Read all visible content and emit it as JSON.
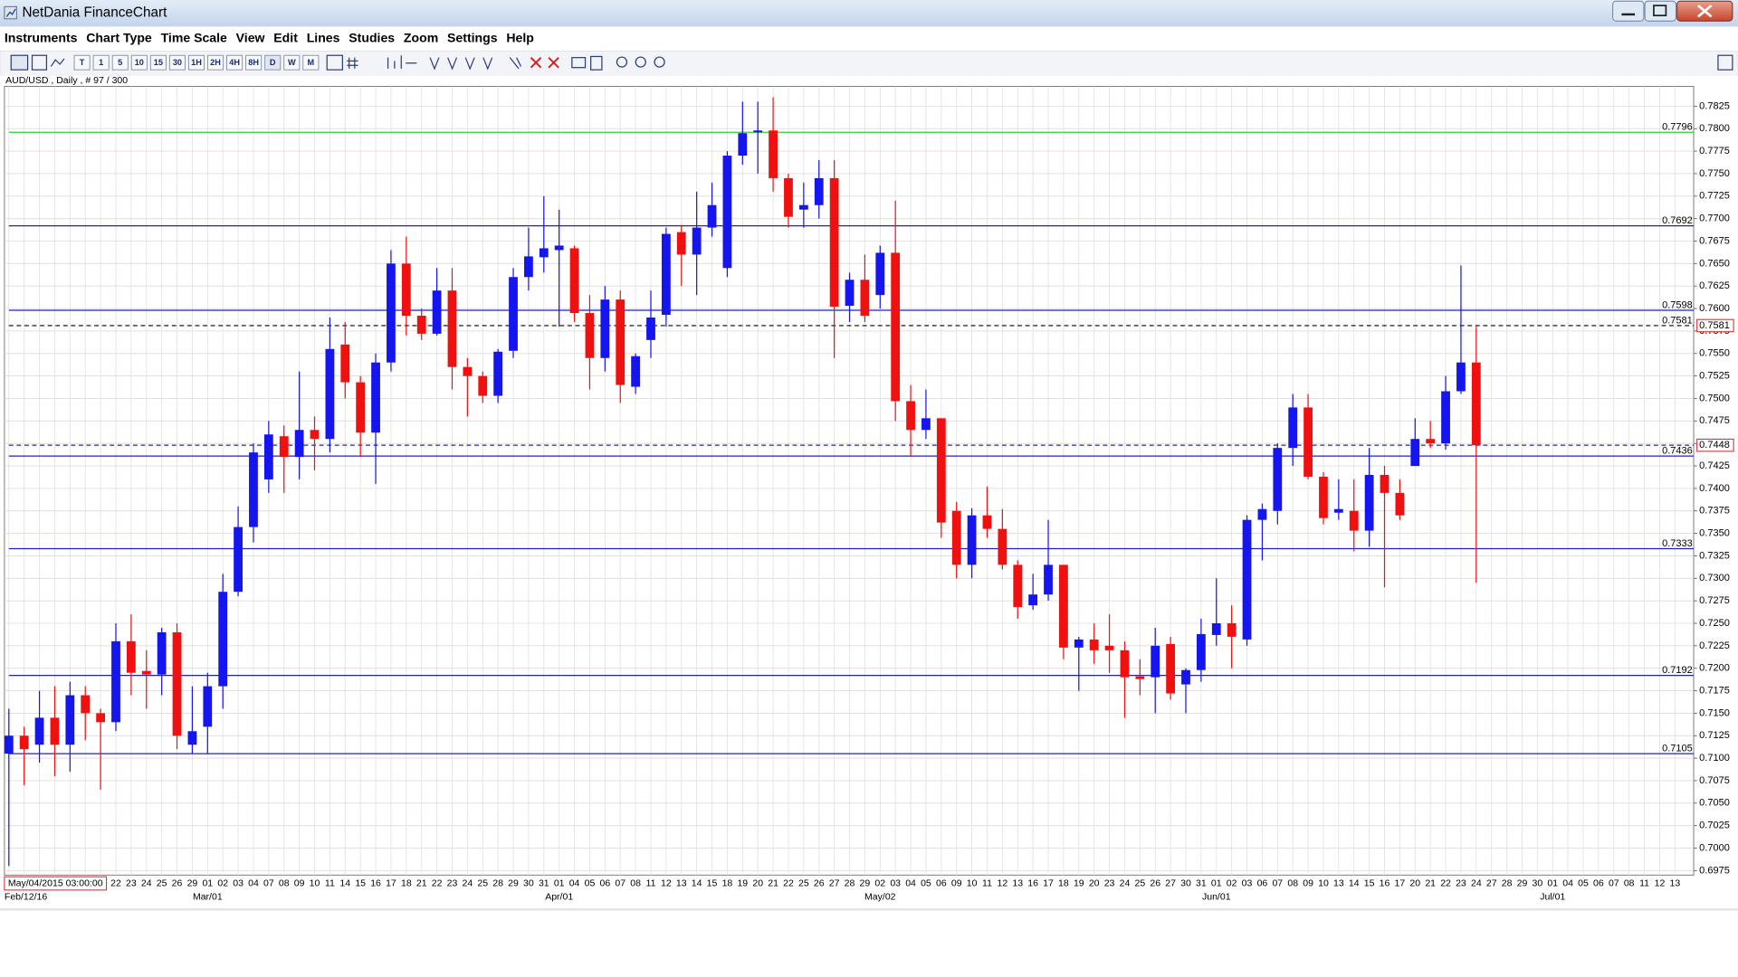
{
  "window": {
    "title": "NetDania FinanceChart",
    "menu": [
      "Instruments",
      "Chart Type",
      "Time Scale",
      "View",
      "Edit",
      "Lines",
      "Studies",
      "Zoom",
      "Settings",
      "Help"
    ],
    "timeframes": [
      "T",
      "1",
      "5",
      "10",
      "15",
      "30",
      "1H",
      "2H",
      "4H",
      "8H",
      "D",
      "W",
      "M"
    ],
    "cursor_time": "May/04/2015 03:00:00"
  },
  "chart_data": {
    "type": "candlestick",
    "title": "AUD/USD , Daily , # 97 / 300",
    "up_color": "#1515f0",
    "down_color": "#f01010",
    "grid": true,
    "axis_side": "right",
    "ylim": [
      0.697,
      0.7847
    ],
    "yticks": [
      0.6975,
      {
        "value": 0.7,
        "label": "0.7000"
      },
      0.7025,
      {
        "value": 0.705,
        "label": "0.7050"
      },
      0.7075,
      {
        "value": 0.71,
        "label": "0.7100"
      },
      0.7125,
      {
        "value": 0.715,
        "label": "0.7150"
      },
      0.7175,
      {
        "value": 0.72,
        "label": "0.7200"
      },
      0.7225,
      {
        "value": 0.725,
        "label": "0.7250"
      },
      0.7275,
      {
        "value": 0.73,
        "label": "0.7300"
      },
      0.7325,
      {
        "value": 0.735,
        "label": "0.7350"
      },
      0.7375,
      {
        "value": 0.74,
        "label": "0.7400"
      },
      0.7425,
      {
        "value": 0.745,
        "label": "0.7450"
      },
      0.7475,
      {
        "value": 0.75,
        "label": "0.7500"
      },
      0.7525,
      {
        "value": 0.755,
        "label": "0.7550"
      },
      0.7575,
      {
        "value": 0.76,
        "label": "0.7600"
      },
      0.7625,
      {
        "value": 0.765,
        "label": "0.7650"
      },
      0.7675,
      {
        "value": 0.77,
        "label": "0.7700"
      },
      0.7725,
      {
        "value": 0.775,
        "label": "0.7750"
      },
      0.7775,
      {
        "value": 0.78,
        "label": "0.7800"
      },
      0.7825
    ],
    "categories": [
      null,
      null,
      null,
      null,
      null,
      null,
      null,
      "22",
      "23",
      "24",
      "25",
      "26",
      "29",
      "01",
      "02",
      "03",
      "04",
      "07",
      "08",
      "09",
      "10",
      "11",
      "14",
      "15",
      "16",
      "17",
      "18",
      "21",
      "22",
      "23",
      "24",
      "25",
      "28",
      "29",
      "30",
      "31",
      "01",
      "04",
      "05",
      "06",
      "07",
      "08",
      "11",
      "12",
      "13",
      "14",
      "15",
      "18",
      "19",
      "20",
      "21",
      "22",
      "25",
      "26",
      "27",
      "28",
      "29",
      "02",
      "03",
      "04",
      "05",
      "06",
      "09",
      "10",
      "11",
      "12",
      "13",
      "16",
      "17",
      "18",
      "19",
      "20",
      "23",
      "24",
      "25",
      "26",
      "27",
      "30",
      "31",
      "01",
      "02",
      "03",
      "06",
      "07",
      "08",
      "09",
      "10",
      "13",
      "14",
      "15",
      "16",
      "17",
      "20",
      "21",
      "22",
      "23",
      "24",
      "27",
      "28",
      "29",
      "30",
      "01",
      "04",
      "05",
      "06",
      "07",
      "08",
      "11",
      "12",
      "13"
    ],
    "months": [
      {
        "label": "Feb/12/16",
        "index": 0
      },
      {
        "label": "Mar/01",
        "index": 13
      },
      {
        "label": "Apr/01",
        "index": 36
      },
      {
        "label": "May/02",
        "index": 57
      },
      {
        "label": "Jun/01",
        "index": 79
      },
      {
        "label": "Jul/01",
        "index": 101
      }
    ],
    "open": [
      0.7105,
      0.7125,
      0.7115,
      0.7145,
      0.7115,
      0.717,
      0.715,
      0.714,
      0.723,
      0.7197,
      0.7193,
      0.724,
      0.7115,
      0.7135,
      0.718,
      0.7285,
      0.7357,
      0.741,
      0.7458,
      0.7435,
      0.7465,
      0.7455,
      0.756,
      0.7518,
      0.7462,
      0.754,
      0.765,
      0.7592,
      0.7572,
      0.762,
      0.7535,
      0.7525,
      0.7503,
      0.7553,
      0.7635,
      0.7657,
      0.7665,
      0.7667,
      0.7595,
      0.7545,
      0.761,
      0.7513,
      0.7565,
      0.7593,
      0.7685,
      0.766,
      0.769,
      0.7645,
      0.777,
      0.7796,
      0.7798,
      0.7745,
      0.771,
      0.7715,
      0.7745,
      0.7603,
      0.7632,
      0.7615,
      0.7662,
      0.7497,
      0.7465,
      0.7478,
      0.7375,
      0.7315,
      0.737,
      0.7355,
      0.7315,
      0.727,
      0.7282,
      0.7315,
      0.7223,
      0.7232,
      0.7225,
      0.722,
      0.7191,
      0.719,
      0.7227,
      0.7182,
      0.7198,
      0.7237,
      0.725,
      0.7232,
      0.7365,
      0.7375,
      0.7445,
      0.749,
      0.7413,
      0.7373,
      0.7375,
      0.7353,
      0.7415,
      0.7395,
      0.7425,
      0.7455,
      0.745,
      0.7508,
      0.754,
      null,
      null,
      null,
      null,
      null,
      null,
      null,
      null,
      null,
      null,
      null,
      null,
      null
    ],
    "high": [
      0.7155,
      0.7135,
      0.7175,
      0.718,
      0.7185,
      0.718,
      0.7155,
      0.725,
      0.726,
      0.722,
      0.7245,
      0.725,
      0.718,
      0.7195,
      0.7305,
      0.738,
      0.745,
      0.7475,
      0.747,
      0.753,
      0.748,
      0.759,
      0.7585,
      0.7525,
      0.755,
      0.7665,
      0.768,
      0.76,
      0.7645,
      0.7645,
      0.7545,
      0.753,
      0.7555,
      0.7645,
      0.769,
      0.7725,
      0.771,
      0.767,
      0.7615,
      0.7625,
      0.762,
      0.755,
      0.762,
      0.769,
      0.7693,
      0.773,
      0.774,
      0.7775,
      0.783,
      0.783,
      0.7835,
      0.775,
      0.774,
      0.7765,
      0.7765,
      0.764,
      0.766,
      0.767,
      0.772,
      0.7515,
      0.751,
      0.7478,
      0.7385,
      0.7378,
      0.7402,
      0.7377,
      0.732,
      0.7305,
      0.7365,
      0.7315,
      0.7235,
      0.725,
      0.726,
      0.723,
      0.721,
      0.7245,
      0.7235,
      0.72,
      0.7255,
      0.73,
      0.727,
      0.737,
      0.7383,
      0.745,
      0.7505,
      0.7505,
      0.7418,
      0.741,
      0.741,
      0.7445,
      0.7425,
      0.741,
      0.7478,
      0.7475,
      0.7525,
      0.7648,
      0.758,
      null,
      null,
      null,
      null,
      null,
      null,
      null,
      null,
      null,
      null,
      null,
      null,
      null
    ],
    "low": [
      0.698,
      0.707,
      0.7095,
      0.708,
      0.7085,
      0.712,
      0.7065,
      0.713,
      0.717,
      0.7155,
      0.717,
      0.711,
      0.7105,
      0.7105,
      0.7155,
      0.728,
      0.734,
      0.7395,
      0.7395,
      0.741,
      0.742,
      0.744,
      0.75,
      0.7435,
      0.7405,
      0.753,
      0.757,
      0.7565,
      0.757,
      0.751,
      0.748,
      0.7495,
      0.7495,
      0.7545,
      0.762,
      0.764,
      0.758,
      0.7585,
      0.751,
      0.753,
      0.7495,
      0.7505,
      0.7545,
      0.758,
      0.7625,
      0.7615,
      0.768,
      0.7635,
      0.776,
      0.775,
      0.773,
      0.769,
      0.769,
      0.77,
      0.7545,
      0.7585,
      0.7585,
      0.76,
      0.7475,
      0.7435,
      0.7455,
      0.7345,
      0.73,
      0.73,
      0.7345,
      0.731,
      0.7255,
      0.7265,
      0.7275,
      0.721,
      0.7175,
      0.7205,
      0.7195,
      0.7145,
      0.717,
      0.715,
      0.7165,
      0.715,
      0.7185,
      0.7225,
      0.72,
      0.7225,
      0.732,
      0.736,
      0.7425,
      0.741,
      0.736,
      0.7365,
      0.733,
      0.7335,
      0.729,
      0.7365,
      0.7425,
      0.7445,
      0.7443,
      0.7505,
      0.7295,
      null,
      null,
      null,
      null,
      null,
      null,
      null,
      null,
      null,
      null,
      null,
      null,
      null
    ],
    "close": [
      0.7125,
      0.711,
      0.7145,
      0.7115,
      0.717,
      0.715,
      0.714,
      0.723,
      0.7195,
      0.7193,
      0.724,
      0.7125,
      0.713,
      0.718,
      0.7285,
      0.7357,
      0.744,
      0.746,
      0.7435,
      0.7465,
      0.7455,
      0.7555,
      0.7518,
      0.7462,
      0.754,
      0.765,
      0.7592,
      0.7572,
      0.762,
      0.7535,
      0.7525,
      0.7503,
      0.7552,
      0.7635,
      0.7658,
      0.7667,
      0.767,
      0.7595,
      0.7545,
      0.761,
      0.7515,
      0.7547,
      0.759,
      0.7683,
      0.766,
      0.769,
      0.7715,
      0.777,
      0.7795,
      0.7798,
      0.7745,
      0.7702,
      0.7715,
      0.7745,
      0.7602,
      0.7632,
      0.7592,
      0.7662,
      0.7497,
      0.7465,
      0.7478,
      0.7362,
      0.7315,
      0.737,
      0.7355,
      0.7315,
      0.7268,
      0.7282,
      0.7315,
      0.7223,
      0.7232,
      0.722,
      0.722,
      0.719,
      0.7188,
      0.7225,
      0.7172,
      0.7198,
      0.7238,
      0.725,
      0.7235,
      0.7365,
      0.7377,
      0.7445,
      0.749,
      0.7413,
      0.7367,
      0.7377,
      0.7353,
      0.7415,
      0.7395,
      0.737,
      0.7455,
      0.745,
      0.7508,
      0.754,
      0.7448,
      null,
      null,
      null,
      null,
      null,
      null,
      null,
      null,
      null,
      null,
      null,
      null,
      null
    ],
    "levels": [
      {
        "value": 0.7796,
        "color": "#33cc33",
        "style": "solid",
        "inline_label": true,
        "boxed": false
      },
      {
        "value": 0.7692,
        "color": "#2222bb",
        "style": "solid",
        "inline_label": true,
        "boxed": false
      },
      {
        "value": 0.7598,
        "color": "#2222bb",
        "style": "solid",
        "inline_label": true,
        "boxed": false
      },
      {
        "value": 0.7581,
        "color": "#000000",
        "style": "dashed",
        "inline_label": true,
        "boxed": true
      },
      {
        "value": 0.7448,
        "color": "#2222bb",
        "style": "dashed",
        "inline_label": false,
        "boxed": true
      },
      {
        "value": 0.7436,
        "color": "#2222bb",
        "style": "solid",
        "inline_label": true,
        "boxed": false
      },
      {
        "value": 0.7333,
        "color": "#2222bb",
        "style": "solid",
        "inline_label": true,
        "boxed": false
      },
      {
        "value": 0.7192,
        "color": "#2222bb",
        "style": "solid",
        "inline_label": true,
        "boxed": false
      },
      {
        "value": 0.7105,
        "color": "#2222bb",
        "style": "solid",
        "inline_label": true,
        "boxed": false
      }
    ]
  }
}
